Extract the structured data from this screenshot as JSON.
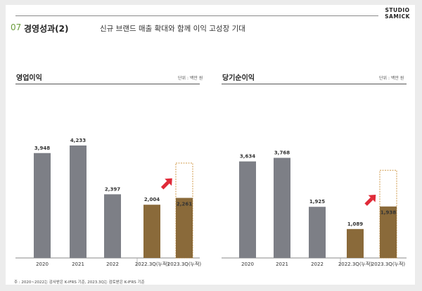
{
  "logo": {
    "line1": "STUDIO",
    "line2": "SAMICK"
  },
  "header": {
    "section_number": "07",
    "section_title": "경영성과(2)",
    "subtitle": "신규 브랜드 매출 확대와 함께 이익 고성장 기대"
  },
  "colors": {
    "gray_bar": "#7d7f86",
    "brown_bar": "#8a6a3a",
    "dashed_border": "#d09a4a",
    "arrow": "#e02a38",
    "accent_green": "#6a9c3c"
  },
  "footnote": "주 : 2020~2022는 감사받은 K-IFRS 기준, 2023.3Q는 검토받은 K-IFRS 기준",
  "panels": [
    {
      "title": "영업이익",
      "unit": "단위 : 백만 원"
    },
    {
      "title": "당기순이익",
      "unit": "단위 : 백만 원"
    }
  ],
  "chart_data": [
    {
      "type": "bar",
      "title": "영업이익",
      "unit": "단위 : 백만 원",
      "categories": [
        "2020",
        "2021",
        "2022",
        "2022.3Q(누적)",
        "2023.3Q(누적)"
      ],
      "values": [
        3948,
        4233,
        2397,
        2004,
        2261
      ],
      "value_labels": [
        "3,948",
        "4,233",
        "2,397",
        "2,004",
        "2,261"
      ],
      "bar_colors": [
        "gray",
        "gray",
        "gray",
        "brown",
        "brown"
      ],
      "dashed_outline_target": 3570,
      "ylim": [
        0,
        4500
      ],
      "grid": false,
      "annotations": [
        "red arrow pointing up-right toward 2023.3Q(누적) bar"
      ]
    },
    {
      "type": "bar",
      "title": "당기순이익",
      "unit": "단위 : 백만 원",
      "categories": [
        "2020",
        "2021",
        "2022",
        "2022.3Q(누적)",
        "2023.3Q(누적)"
      ],
      "values": [
        3634,
        3768,
        1925,
        1089,
        1938
      ],
      "value_labels": [
        "3,634",
        "3,768",
        "1,925",
        "1,089",
        "1,938"
      ],
      "bar_colors": [
        "gray",
        "gray",
        "gray",
        "brown",
        "brown"
      ],
      "dashed_outline_target": 3300,
      "ylim": [
        0,
        4500
      ],
      "grid": false,
      "annotations": [
        "red arrow pointing up-right toward 2023.3Q(누적) bar"
      ]
    }
  ]
}
